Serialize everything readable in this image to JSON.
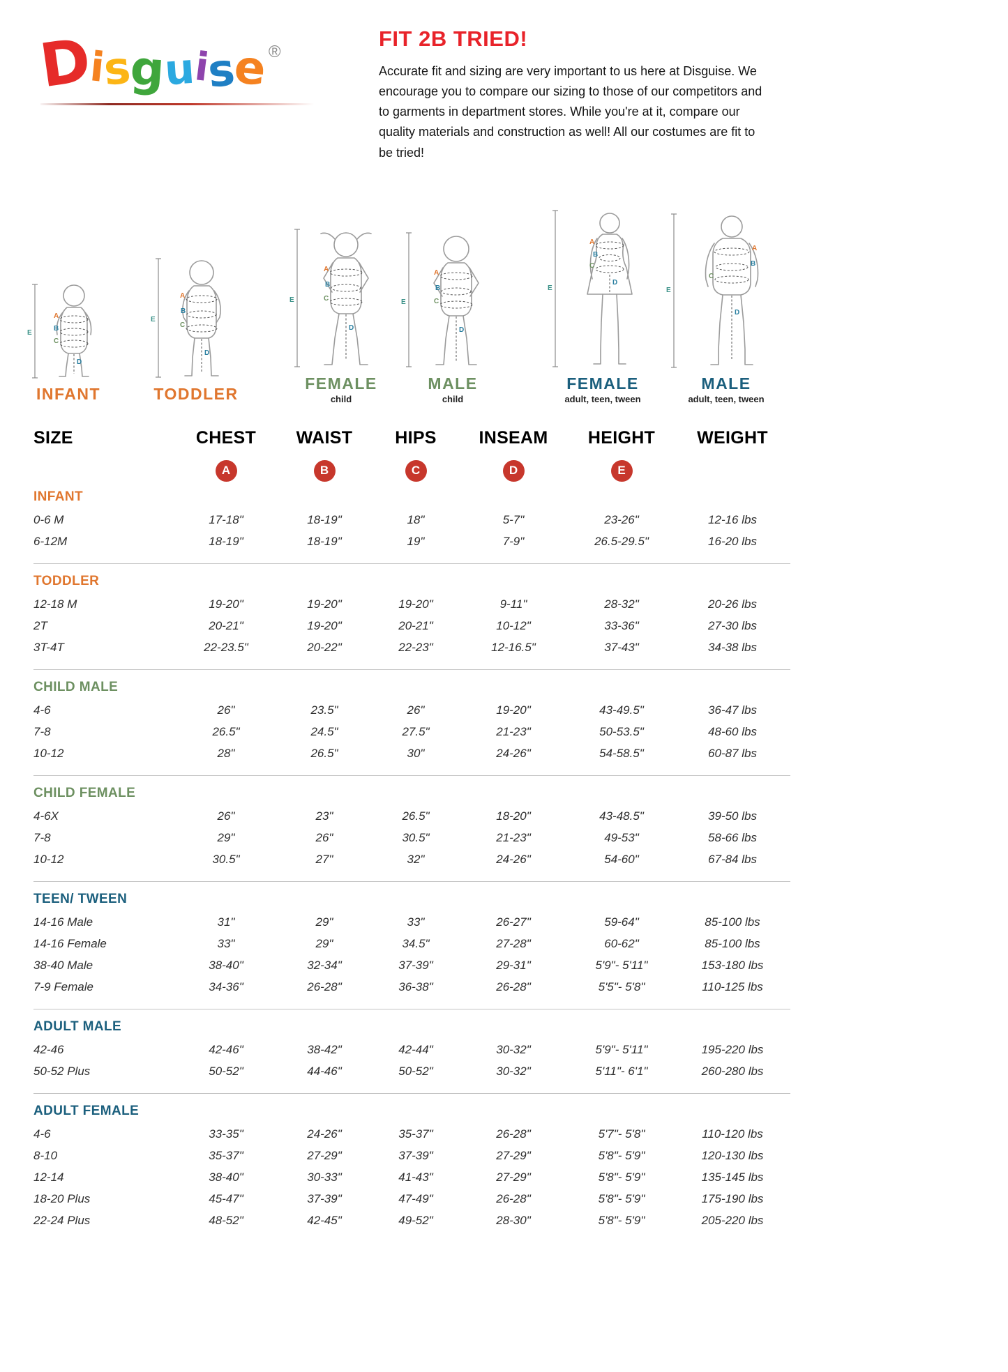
{
  "logo": {
    "letters": [
      {
        "ch": "D",
        "color": "#e62b29"
      },
      {
        "ch": "i",
        "color": "#f58220"
      },
      {
        "ch": "s",
        "color": "#fcb515"
      },
      {
        "ch": "g",
        "color": "#3fa63c"
      },
      {
        "ch": "u",
        "color": "#2ba9e0"
      },
      {
        "ch": "i",
        "color": "#8e44ad"
      },
      {
        "ch": "s",
        "color": "#1f7fc4"
      },
      {
        "ch": "e",
        "color": "#f58220"
      }
    ],
    "registered": "®"
  },
  "intro": {
    "title": "FIT 2B TRIED!",
    "body": "Accurate fit and sizing are very important to us here at Disguise. We encourage you to compare our sizing to those of our competitors and to garments in department stores. While you're at it, compare our quality materials and construction as well! All our costumes are fit to be tried!"
  },
  "letters": {
    "A": "A",
    "B": "B",
    "C": "C",
    "D": "D",
    "E": "E"
  },
  "figures": [
    {
      "label": "INFANT",
      "sub": "",
      "color": "#e0762e"
    },
    {
      "label": "TODDLER",
      "sub": "",
      "color": "#e0762e"
    },
    {
      "label": "FEMALE",
      "sub": "child",
      "color": "#6d9061"
    },
    {
      "label": "MALE",
      "sub": "child",
      "color": "#6d9061"
    },
    {
      "label": "FEMALE",
      "sub": "adult, teen, tween",
      "color": "#1b5f7d"
    },
    {
      "label": "MALE",
      "sub": "adult, teen, tween",
      "color": "#1b5f7d"
    }
  ],
  "table": {
    "columns": [
      "SIZE",
      "CHEST",
      "WAIST",
      "HIPS",
      "INSEAM",
      "HEIGHT",
      "WEIGHT"
    ],
    "badges": [
      "A",
      "B",
      "C",
      "D",
      "E"
    ],
    "badge_color": "#c7372c",
    "sections": [
      {
        "title": "INFANT",
        "color": "#e0762e",
        "rows": [
          {
            "size": "0-6 M",
            "chest": "17-18\"",
            "waist": "18-19\"",
            "hips": "18\"",
            "inseam": "5-7\"",
            "height": "23-26\"",
            "weight": "12-16 lbs"
          },
          {
            "size": "6-12M",
            "chest": "18-19\"",
            "waist": "18-19\"",
            "hips": "19\"",
            "inseam": "7-9\"",
            "height": "26.5-29.5\"",
            "weight": "16-20 lbs"
          }
        ]
      },
      {
        "title": "TODDLER",
        "color": "#e0762e",
        "rows": [
          {
            "size": "12-18 M",
            "chest": "19-20\"",
            "waist": "19-20\"",
            "hips": "19-20\"",
            "inseam": "9-11\"",
            "height": "28-32\"",
            "weight": "20-26 lbs"
          },
          {
            "size": "2T",
            "chest": "20-21\"",
            "waist": "19-20\"",
            "hips": "20-21\"",
            "inseam": "10-12\"",
            "height": "33-36\"",
            "weight": "27-30 lbs"
          },
          {
            "size": "3T-4T",
            "chest": "22-23.5\"",
            "waist": "20-22\"",
            "hips": "22-23\"",
            "inseam": "12-16.5\"",
            "height": "37-43\"",
            "weight": "34-38 lbs"
          }
        ]
      },
      {
        "title": "CHILD MALE",
        "color": "#6d9061",
        "rows": [
          {
            "size": "4-6",
            "chest": "26\"",
            "waist": "23.5\"",
            "hips": "26\"",
            "inseam": "19-20\"",
            "height": "43-49.5\"",
            "weight": "36-47 lbs"
          },
          {
            "size": "7-8",
            "chest": "26.5\"",
            "waist": "24.5\"",
            "hips": "27.5\"",
            "inseam": "21-23\"",
            "height": "50-53.5\"",
            "weight": "48-60 lbs"
          },
          {
            "size": "10-12",
            "chest": "28\"",
            "waist": "26.5\"",
            "hips": "30\"",
            "inseam": "24-26\"",
            "height": "54-58.5\"",
            "weight": "60-87 lbs"
          }
        ]
      },
      {
        "title": "CHILD FEMALE",
        "color": "#6d9061",
        "rows": [
          {
            "size": "4-6X",
            "chest": "26\"",
            "waist": "23\"",
            "hips": "26.5\"",
            "inseam": "18-20\"",
            "height": "43-48.5\"",
            "weight": "39-50 lbs"
          },
          {
            "size": "7-8",
            "chest": "29\"",
            "waist": "26\"",
            "hips": "30.5\"",
            "inseam": "21-23\"",
            "height": "49-53\"",
            "weight": "58-66 lbs"
          },
          {
            "size": "10-12",
            "chest": "30.5\"",
            "waist": "27\"",
            "hips": "32\"",
            "inseam": "24-26\"",
            "height": "54-60\"",
            "weight": "67-84 lbs"
          }
        ]
      },
      {
        "title": "TEEN/ TWEEN",
        "color": "#1b5f7d",
        "rows": [
          {
            "size": "14-16 Male",
            "chest": "31\"",
            "waist": "29\"",
            "hips": "33\"",
            "inseam": "26-27\"",
            "height": "59-64\"",
            "weight": "85-100 lbs"
          },
          {
            "size": "14-16 Female",
            "chest": "33\"",
            "waist": "29\"",
            "hips": "34.5\"",
            "inseam": "27-28\"",
            "height": "60-62\"",
            "weight": "85-100 lbs"
          },
          {
            "size": "38-40 Male",
            "chest": "38-40\"",
            "waist": "32-34\"",
            "hips": "37-39\"",
            "inseam": "29-31\"",
            "height": "5'9\"- 5'11\"",
            "weight": "153-180 lbs"
          },
          {
            "size": "7-9 Female",
            "chest": "34-36\"",
            "waist": "26-28\"",
            "hips": "36-38\"",
            "inseam": "26-28\"",
            "height": "5'5\"- 5'8\"",
            "weight": "110-125 lbs"
          }
        ]
      },
      {
        "title": "ADULT MALE",
        "color": "#1b5f7d",
        "rows": [
          {
            "size": "42-46",
            "chest": "42-46\"",
            "waist": "38-42\"",
            "hips": "42-44\"",
            "inseam": "30-32\"",
            "height": "5'9\"- 5'11\"",
            "weight": "195-220 lbs"
          },
          {
            "size": "50-52 Plus",
            "chest": "50-52\"",
            "waist": "44-46\"",
            "hips": "50-52\"",
            "inseam": "30-32\"",
            "height": "5'11\"- 6'1\"",
            "weight": "260-280 lbs"
          }
        ]
      },
      {
        "title": "ADULT FEMALE",
        "color": "#1b5f7d",
        "rows": [
          {
            "size": "4-6",
            "chest": "33-35\"",
            "waist": "24-26\"",
            "hips": "35-37\"",
            "inseam": "26-28\"",
            "height": "5'7\"- 5'8\"",
            "weight": "110-120 lbs"
          },
          {
            "size": "8-10",
            "chest": "35-37\"",
            "waist": "27-29\"",
            "hips": "37-39\"",
            "inseam": "27-29\"",
            "height": "5'8\"- 5'9\"",
            "weight": "120-130 lbs"
          },
          {
            "size": "12-14",
            "chest": "38-40\"",
            "waist": "30-33\"",
            "hips": "41-43\"",
            "inseam": "27-29\"",
            "height": "5'8\"- 5'9\"",
            "weight": "135-145 lbs"
          },
          {
            "size": "18-20 Plus",
            "chest": "45-47\"",
            "waist": "37-39\"",
            "hips": "47-49\"",
            "inseam": "26-28\"",
            "height": "5'8\"- 5'9\"",
            "weight": "175-190 lbs"
          },
          {
            "size": "22-24 Plus",
            "chest": "48-52\"",
            "waist": "42-45\"",
            "hips": "49-52\"",
            "inseam": "28-30\"",
            "height": "5'8\"- 5'9\"",
            "weight": "205-220 lbs"
          }
        ]
      }
    ]
  }
}
